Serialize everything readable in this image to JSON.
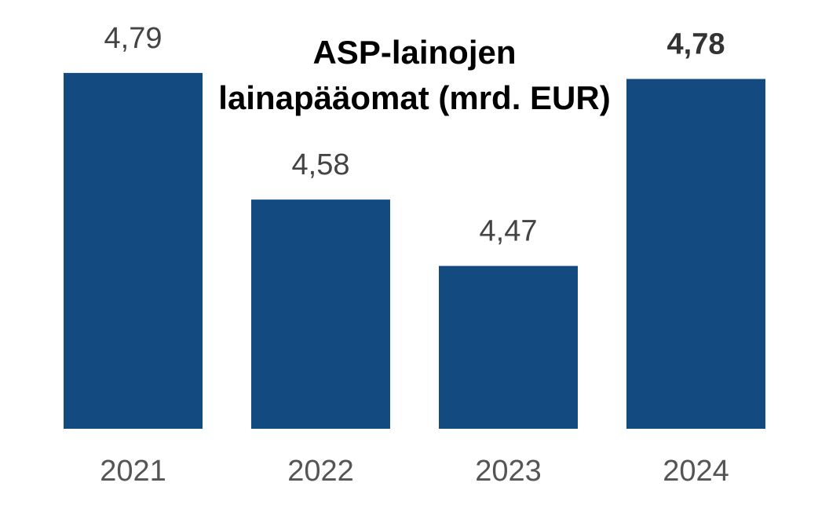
{
  "chart_data": {
    "type": "bar",
    "title_lines": [
      "ASP-lainojen",
      "lainapääomat (mrd. EUR)"
    ],
    "categories": [
      "2021",
      "2022",
      "2023",
      "2024"
    ],
    "values": [
      4.79,
      4.58,
      4.47,
      4.78
    ],
    "value_labels": [
      "4,79",
      "4,58",
      "4,47",
      "4,78"
    ],
    "highlight_index": 3,
    "bar_color": "#134a7f",
    "xlabel": "",
    "ylabel": "",
    "ylim": [
      4.2,
      4.8
    ],
    "grid": false,
    "legend": "none"
  }
}
